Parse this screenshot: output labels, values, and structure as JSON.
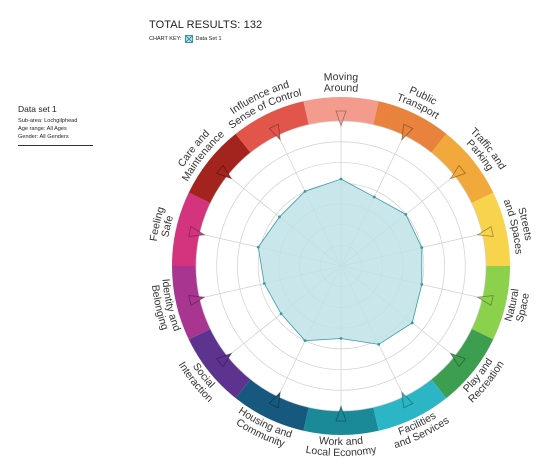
{
  "header": {
    "total_results": "TOTAL RESULTS: 132",
    "chart_key_label": "CHART KEY:",
    "key_series": "Data Set 1"
  },
  "dataset_info": {
    "name": "Data set 1",
    "sub_area": "Sub-area: Lochgilphead",
    "age_range": "Age range: All Ages",
    "gender": "Gender: All Genders"
  },
  "chart_data": {
    "type": "radar",
    "scale": [
      0,
      7
    ],
    "grid": true,
    "categories": [
      {
        "label": [
          "Moving",
          "Around"
        ],
        "color": "#f39c8e"
      },
      {
        "label": [
          "Public",
          "Transport"
        ],
        "color": "#e8823c"
      },
      {
        "label": [
          "Traffic and",
          "Parking"
        ],
        "color": "#f2a93b"
      },
      {
        "label": [
          "Streets",
          "and Spaces"
        ],
        "color": "#f8d44c"
      },
      {
        "label": [
          "Natural",
          "Space"
        ],
        "color": "#8cd14c"
      },
      {
        "label": [
          "Play and",
          "Recreation"
        ],
        "color": "#3e9e4f"
      },
      {
        "label": [
          "Facilities",
          "and Services"
        ],
        "color": "#2bb5c5"
      },
      {
        "label": [
          "Work and",
          "Local Economy"
        ],
        "color": "#1a8a98"
      },
      {
        "label": [
          "Housing and",
          "Community"
        ],
        "color": "#17587e"
      },
      {
        "label": [
          "Social",
          "Interaction"
        ],
        "color": "#5d3390"
      },
      {
        "label": [
          "Identity and",
          "Belonging"
        ],
        "color": "#a83690"
      },
      {
        "label": [
          "Feeling",
          "Safe"
        ],
        "color": "#d4347e"
      },
      {
        "label": [
          "Care and",
          "Maintenance"
        ],
        "color": "#a3241e"
      },
      {
        "label": [
          "Influence and",
          "Sense of Control"
        ],
        "color": "#e2554a"
      }
    ],
    "series": [
      {
        "name": "Data Set 1",
        "color": "#3a9aa3",
        "fill": "#bfe3e6",
        "values": [
          4.2,
          3.7,
          4.0,
          4.0,
          4.0,
          4.4,
          4.2,
          3.5,
          4.0,
          3.7,
          3.8,
          4.1,
          3.8,
          4.0
        ]
      }
    ]
  }
}
